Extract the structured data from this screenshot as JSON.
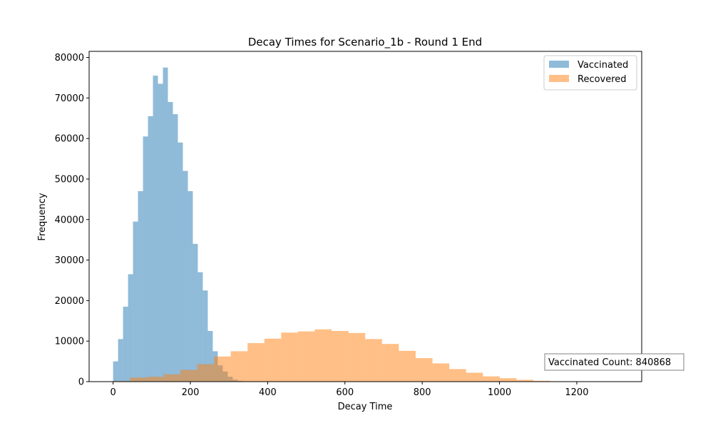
{
  "chart_data": {
    "type": "histogram",
    "title": "Decay Times for Scenario_1b - Round 1 End",
    "xlabel": "Decay Time",
    "ylabel": "Frequency",
    "xlim": [
      -62,
      1368
    ],
    "ylim": [
      0,
      81500
    ],
    "xticks": [
      0,
      200,
      400,
      600,
      800,
      1000,
      1200
    ],
    "yticks": [
      0,
      10000,
      20000,
      30000,
      40000,
      50000,
      60000,
      70000,
      80000
    ],
    "grid": false,
    "legend_position": "top-right",
    "annotation": "Vaccinated Count: 840868",
    "series": [
      {
        "name": "Vaccinated",
        "color": "#1f77b4",
        "alpha": 0.5,
        "bin_start": 0,
        "bin_width": 12.9,
        "counts": [
          5000,
          10500,
          18500,
          26500,
          39500,
          47000,
          60500,
          65500,
          75500,
          73500,
          77500,
          69000,
          66000,
          59000,
          52000,
          47000,
          34000,
          27000,
          22500,
          12500,
          7500,
          4000,
          2500,
          1200,
          500,
          200,
          50
        ]
      },
      {
        "name": "Recovered",
        "color": "#ff7f0e",
        "alpha": 0.5,
        "bin_start": 0,
        "bin_width": 43.5,
        "counts": [
          150,
          1000,
          1200,
          1800,
          2900,
          4300,
          6200,
          7500,
          9500,
          10600,
          12100,
          12400,
          12900,
          12500,
          12000,
          10500,
          9300,
          7600,
          5800,
          4500,
          3100,
          2200,
          1300,
          850,
          450,
          200,
          100,
          50,
          20,
          8
        ]
      }
    ]
  }
}
